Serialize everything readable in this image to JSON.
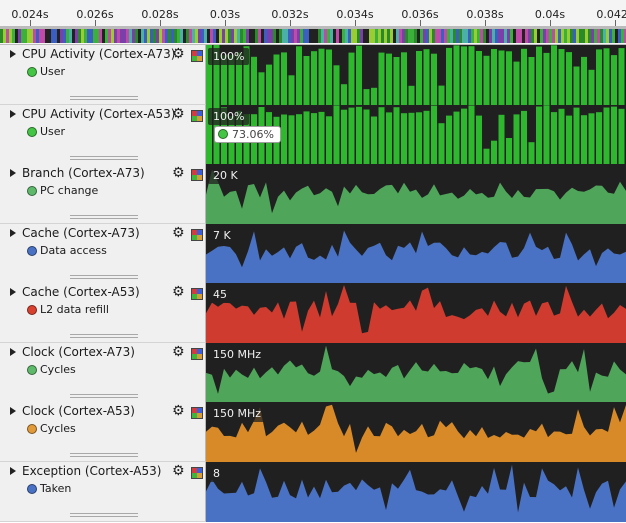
{
  "ruler": {
    "ticks": [
      "0.024s",
      "0.026s",
      "0.028s",
      "0.03s",
      "0.032s",
      "0.034s",
      "0.036s",
      "0.038s",
      "0.04s",
      "0.042s"
    ]
  },
  "colors": {
    "cpu_green": "#2db82d",
    "branch_green": "#4fa65a",
    "clock_green": "#4fa65a",
    "blue": "#4a72c4",
    "red": "#cf3b2e",
    "orange": "#d88a28",
    "plot_bg": "#202020"
  },
  "rows": [
    {
      "title": "CPU Activity (Cortex-A73)",
      "series": "User",
      "series_icon": "green-circle-icon",
      "max": "100%",
      "style": "bars",
      "color": "#2db82d",
      "dot": "#45c545"
    },
    {
      "title": "CPU Activity (Cortex-A53)",
      "series": "User",
      "series_icon": "green-circle-icon",
      "max": "100%",
      "style": "bars",
      "color": "#2db82d",
      "dot": "#45c545",
      "tooltip": "73.06%"
    },
    {
      "title": "Branch (Cortex-A73)",
      "series": "PC change",
      "series_icon": "green-circle-icon",
      "max": "20 K",
      "style": "area",
      "color": "#4fa65a",
      "dot": "#5fb96a"
    },
    {
      "title": "Cache (Cortex-A73)",
      "series": "Data access",
      "series_icon": "blue-circle-icon",
      "max": "7 K",
      "style": "area",
      "color": "#4a72c4",
      "dot": "#4a72c4"
    },
    {
      "title": "Cache (Cortex-A53)",
      "series": "L2 data refill",
      "series_icon": "red-circle-icon",
      "max": "45",
      "style": "area",
      "color": "#cf3b2e",
      "dot": "#d8412f"
    },
    {
      "title": "Clock (Cortex-A73)",
      "series": "Cycles",
      "series_icon": "green-circle-icon",
      "max": "150 MHz",
      "style": "area",
      "color": "#4fa65a",
      "dot": "#5fb96a"
    },
    {
      "title": "Clock (Cortex-A53)",
      "series": "Cycles",
      "series_icon": "orange-circle-icon",
      "max": "150 MHz",
      "style": "area",
      "color": "#d88a28",
      "dot": "#e09a3a"
    },
    {
      "title": "Exception (Cortex-A53)",
      "series": "Taken",
      "series_icon": "blue-circle-icon",
      "max": "8",
      "style": "area",
      "color": "#4a72c4",
      "dot": "#4a72c4"
    }
  ]
}
